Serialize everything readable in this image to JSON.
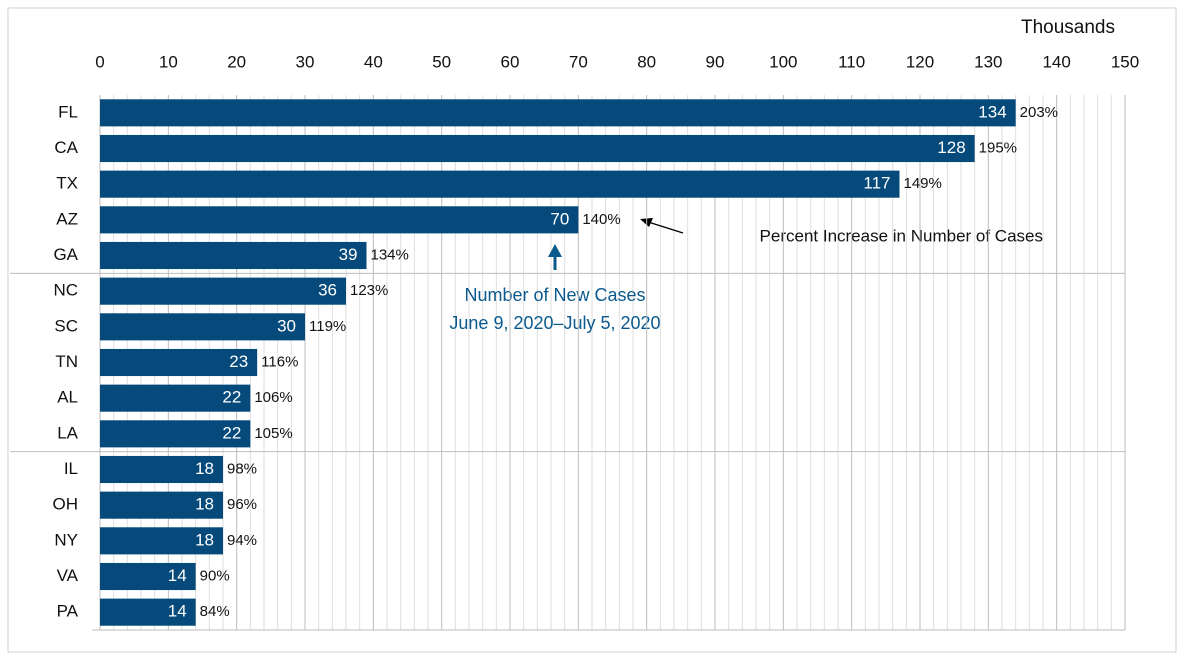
{
  "chart_data": {
    "type": "bar",
    "orientation": "horizontal",
    "axis_label": "Thousands",
    "categories": [
      "FL",
      "CA",
      "TX",
      "AZ",
      "GA",
      "NC",
      "SC",
      "TN",
      "AL",
      "LA",
      "IL",
      "OH",
      "NY",
      "VA",
      "PA"
    ],
    "values": [
      134,
      128,
      117,
      70,
      39,
      36,
      30,
      23,
      22,
      22,
      18,
      18,
      18,
      14,
      14
    ],
    "percent_values": [
      203,
      195,
      149,
      140,
      134,
      123,
      119,
      116,
      106,
      105,
      98,
      96,
      94,
      90,
      84
    ],
    "percent_labels": [
      "203%",
      "195%",
      "149%",
      "140%",
      "134%",
      "123%",
      "119%",
      "116%",
      "106%",
      "105%",
      "98%",
      "96%",
      "94%",
      "90%",
      "84%"
    ],
    "color": "#064a7b",
    "xlim": [
      0,
      150
    ],
    "xticks": [
      0,
      10,
      20,
      30,
      40,
      50,
      60,
      70,
      80,
      90,
      100,
      110,
      120,
      130,
      140,
      150
    ],
    "grid": true,
    "annotations": [
      "Percent Increase in Number of Cases",
      "Number of New Cases",
      "June 9, 2020–July 5, 2020"
    ]
  }
}
